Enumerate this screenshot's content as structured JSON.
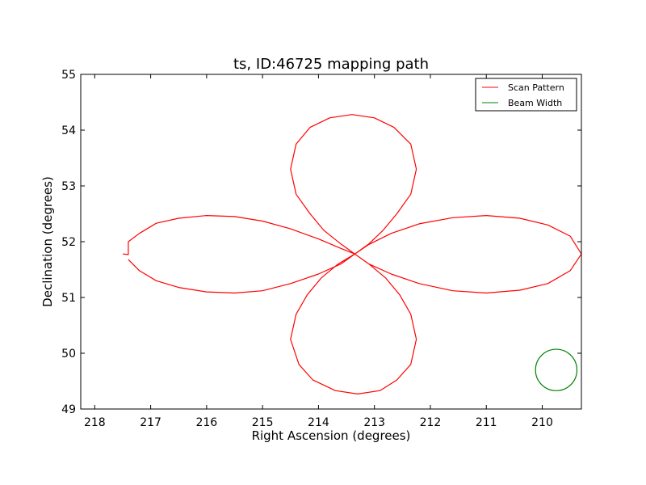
{
  "chart_data": {
    "type": "line",
    "title": "ts, ID:46725 mapping path",
    "xlabel": "Right Ascension (degrees)",
    "ylabel": "Declination (degrees)",
    "xlim": [
      218.25,
      209.3
    ],
    "ylim": [
      49,
      55
    ],
    "xticks": [
      "218",
      "217",
      "216",
      "215",
      "214",
      "213",
      "212",
      "211",
      "210"
    ],
    "yticks": [
      "49",
      "50",
      "51",
      "52",
      "53",
      "54",
      "55"
    ],
    "grid": false,
    "legend_position": "top-right",
    "series": [
      {
        "name": "Scan Pattern",
        "color": "#ff0000",
        "center": [
          213.35,
          51.78
        ],
        "points": [
          [
            217.5,
            51.78
          ],
          [
            217.4,
            51.77
          ],
          [
            217.4,
            52.0
          ],
          [
            217.2,
            52.15
          ],
          [
            216.9,
            52.33
          ],
          [
            216.5,
            52.42
          ],
          [
            216.0,
            52.47
          ],
          [
            215.5,
            52.45
          ],
          [
            215.0,
            52.37
          ],
          [
            214.5,
            52.23
          ],
          [
            214.0,
            52.05
          ],
          [
            213.6,
            51.88
          ],
          [
            213.35,
            51.78
          ],
          [
            213.1,
            51.6
          ],
          [
            212.8,
            51.35
          ],
          [
            212.55,
            51.05
          ],
          [
            212.35,
            50.7
          ],
          [
            212.25,
            50.25
          ],
          [
            212.35,
            49.8
          ],
          [
            212.6,
            49.52
          ],
          [
            212.9,
            49.33
          ],
          [
            213.3,
            49.27
          ],
          [
            213.7,
            49.33
          ],
          [
            214.1,
            49.52
          ],
          [
            214.35,
            49.8
          ],
          [
            214.5,
            50.25
          ],
          [
            214.4,
            50.7
          ],
          [
            214.2,
            51.05
          ],
          [
            213.95,
            51.35
          ],
          [
            213.65,
            51.6
          ],
          [
            213.35,
            51.78
          ],
          [
            213.1,
            51.95
          ],
          [
            212.7,
            52.15
          ],
          [
            212.2,
            52.32
          ],
          [
            211.6,
            52.43
          ],
          [
            211.0,
            52.47
          ],
          [
            210.4,
            52.42
          ],
          [
            209.9,
            52.3
          ],
          [
            209.5,
            52.1
          ],
          [
            209.3,
            51.78
          ],
          [
            209.5,
            51.48
          ],
          [
            209.9,
            51.25
          ],
          [
            210.4,
            51.13
          ],
          [
            211.0,
            51.08
          ],
          [
            211.6,
            51.12
          ],
          [
            212.2,
            51.25
          ],
          [
            212.7,
            51.42
          ],
          [
            213.1,
            51.6
          ],
          [
            213.35,
            51.78
          ],
          [
            213.6,
            51.96
          ],
          [
            213.9,
            52.2
          ],
          [
            214.15,
            52.5
          ],
          [
            214.4,
            52.85
          ],
          [
            214.5,
            53.3
          ],
          [
            214.4,
            53.75
          ],
          [
            214.15,
            54.05
          ],
          [
            213.8,
            54.22
          ],
          [
            213.4,
            54.28
          ],
          [
            213.0,
            54.22
          ],
          [
            212.65,
            54.05
          ],
          [
            212.35,
            53.75
          ],
          [
            212.25,
            53.3
          ],
          [
            212.35,
            52.85
          ],
          [
            212.6,
            52.5
          ],
          [
            212.85,
            52.2
          ],
          [
            213.1,
            51.96
          ],
          [
            213.35,
            51.78
          ],
          [
            213.6,
            51.6
          ],
          [
            214.0,
            51.42
          ],
          [
            214.5,
            51.25
          ],
          [
            215.0,
            51.12
          ],
          [
            215.5,
            51.08
          ],
          [
            216.0,
            51.1
          ],
          [
            216.5,
            51.18
          ],
          [
            216.9,
            51.3
          ],
          [
            217.2,
            51.48
          ],
          [
            217.4,
            51.68
          ]
        ]
      },
      {
        "name": "Beam Width",
        "color": "#008000",
        "shape": "circle",
        "center": [
          209.75,
          49.7
        ],
        "radius_deg": 0.37
      }
    ]
  }
}
